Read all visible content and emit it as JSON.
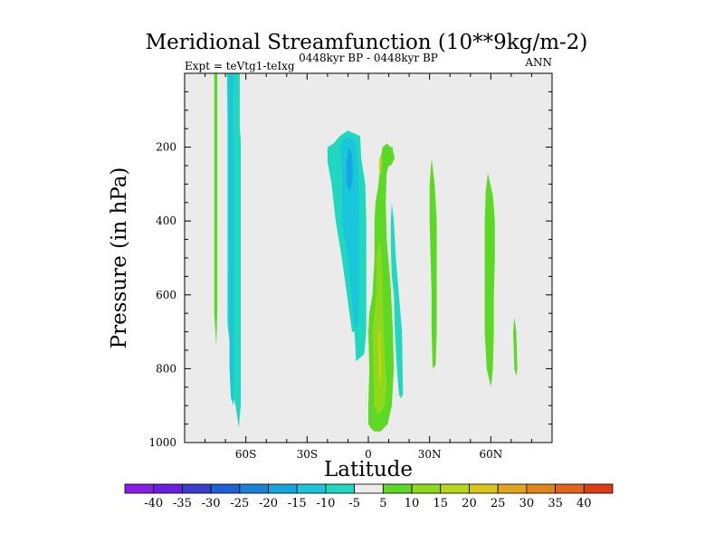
{
  "chart_data": {
    "type": "heatmap",
    "title": "Meridional Streamfunction (10**9kg/m-2)",
    "subtitle_left": "Expt = teVtg1-teIxg",
    "subtitle_center": "0448kyr BP - 0448kyr BP",
    "subtitle_right": "ANN",
    "xlabel": "Latitude",
    "ylabel": "Pressure (in hPa)",
    "xlim": [
      -90,
      90
    ],
    "ylim": [
      1000,
      0
    ],
    "x_ticks": [
      {
        "value": -60,
        "label": "60S"
      },
      {
        "value": -30,
        "label": "30S"
      },
      {
        "value": 0,
        "label": "0"
      },
      {
        "value": 30,
        "label": "30N"
      },
      {
        "value": 60,
        "label": "60N"
      }
    ],
    "y_ticks": [
      {
        "value": 200,
        "label": "200"
      },
      {
        "value": 400,
        "label": "400"
      },
      {
        "value": 600,
        "label": "600"
      },
      {
        "value": 800,
        "label": "800"
      },
      {
        "value": 1000,
        "label": "1000"
      }
    ],
    "colorbar": {
      "labels": [
        "-40",
        "-35",
        "-30",
        "-25",
        "-20",
        "-15",
        "-10",
        "-5",
        "5",
        "10",
        "15",
        "20",
        "25",
        "30",
        "35",
        "40"
      ],
      "colors": [
        "#8a1ee8",
        "#6a1ee0",
        "#3c3ccf",
        "#1f5fd8",
        "#1a82d8",
        "#15a6df",
        "#19c6dc",
        "#20d8c0",
        "#ebebeb",
        "#5cd825",
        "#8ed81e",
        "#b8d61a",
        "#d8c71a",
        "#e0a71a",
        "#e2861a",
        "#e2641a",
        "#e03c14"
      ]
    },
    "contours": [
      {
        "level": 5,
        "color": "#5cd825",
        "points": [
          [
            -75.5,
            0
          ],
          [
            -74,
            0
          ],
          [
            -74,
            650
          ],
          [
            -74.5,
            740
          ],
          [
            -75.5,
            650
          ]
        ]
      },
      {
        "level": -5,
        "color": "#20d8c0",
        "points": [
          [
            -69.3,
            0
          ],
          [
            -63,
            0
          ],
          [
            -63,
            150
          ],
          [
            -62.5,
            180
          ],
          [
            -62.5,
            900
          ],
          [
            -63.5,
            960
          ],
          [
            -65,
            900
          ],
          [
            -66,
            880
          ],
          [
            -66.5,
            800
          ],
          [
            -69,
            680
          ],
          [
            -69,
            130
          ]
        ]
      },
      {
        "level": -10,
        "color": "#19c6dc",
        "points": [
          [
            -68.5,
            0
          ],
          [
            -66,
            0
          ],
          [
            -66.5,
            150
          ],
          [
            -66,
            220
          ],
          [
            -66,
            900
          ],
          [
            -67.3,
            880
          ],
          [
            -68,
            800
          ],
          [
            -68,
            680
          ],
          [
            -68.3,
            130
          ]
        ]
      },
      {
        "level": -5,
        "color": "#20d8c0",
        "points": [
          [
            -20,
            200
          ],
          [
            -17,
            190
          ],
          [
            -14,
            170
          ],
          [
            -10,
            155
          ],
          [
            -4,
            170
          ],
          [
            -3.5,
            230
          ],
          [
            -1.5,
            300
          ],
          [
            -1,
            400
          ],
          [
            -1,
            500
          ],
          [
            -1,
            600
          ],
          [
            -1,
            700
          ],
          [
            -2,
            760
          ],
          [
            -4,
            770
          ],
          [
            -6,
            780
          ],
          [
            -6.8,
            700
          ],
          [
            -8,
            700
          ],
          [
            -13,
            500
          ],
          [
            -16,
            400
          ],
          [
            -18,
            300
          ],
          [
            -20,
            240
          ]
        ]
      },
      {
        "level": -10,
        "color": "#19c6dc",
        "points": [
          [
            -14,
            200
          ],
          [
            -12,
            180
          ],
          [
            -9,
            170
          ],
          [
            -6,
            190
          ],
          [
            -5,
            260
          ],
          [
            -4.5,
            400
          ],
          [
            -4.5,
            600
          ],
          [
            -5,
            680
          ],
          [
            -6.8,
            690
          ],
          [
            -10,
            500
          ],
          [
            -13,
            400
          ],
          [
            -13,
            250
          ]
        ]
      },
      {
        "level": -15,
        "color": "#15a6df",
        "points": [
          [
            -11,
            250
          ],
          [
            -9.5,
            200
          ],
          [
            -8,
            220
          ],
          [
            -7.5,
            280
          ],
          [
            -9,
            320
          ],
          [
            -10.5,
            300
          ]
        ]
      },
      {
        "level": 5,
        "color": "#5cd825",
        "points": [
          [
            0.5,
            650
          ],
          [
            2,
            600
          ],
          [
            3,
            500
          ],
          [
            3,
            400
          ],
          [
            3.5,
            350
          ],
          [
            5,
            300
          ],
          [
            6,
            230
          ],
          [
            7,
            200
          ],
          [
            9,
            190
          ],
          [
            11,
            200
          ],
          [
            12,
            200
          ],
          [
            12,
            210
          ],
          [
            13,
            230
          ],
          [
            11,
            250
          ],
          [
            10,
            250
          ],
          [
            9,
            270
          ],
          [
            8.5,
            350
          ],
          [
            9,
            450
          ],
          [
            11,
            580
          ],
          [
            12,
            700
          ],
          [
            12.5,
            800
          ],
          [
            11.5,
            900
          ],
          [
            9.5,
            950
          ],
          [
            6,
            970
          ],
          [
            3,
            970
          ],
          [
            1,
            960
          ],
          [
            0,
            950
          ],
          [
            0,
            900
          ],
          [
            0.5,
            800
          ],
          [
            0,
            700
          ]
        ]
      },
      {
        "level": 10,
        "color": "#8ed81e",
        "points": [
          [
            2,
            700
          ],
          [
            3,
            650
          ],
          [
            4,
            600
          ],
          [
            4,
            500
          ],
          [
            5.5,
            450
          ],
          [
            6.5,
            500
          ],
          [
            7,
            600
          ],
          [
            8,
            750
          ],
          [
            9,
            850
          ],
          [
            8,
            900
          ],
          [
            6,
            920
          ],
          [
            4,
            920
          ],
          [
            3,
            900
          ],
          [
            2.5,
            800
          ]
        ]
      },
      {
        "level": 15,
        "color": "#b8d61a",
        "points": [
          [
            5.5,
            230
          ],
          [
            6.5,
            220
          ],
          [
            6.7,
            250
          ],
          [
            6,
            280
          ],
          [
            5.2,
            260
          ]
        ]
      },
      {
        "level": 15,
        "color": "#b8d61a",
        "points": [
          [
            4.5,
            700
          ],
          [
            6,
            700
          ],
          [
            6.5,
            800
          ],
          [
            6,
            850
          ],
          [
            5,
            820
          ]
        ]
      },
      {
        "level": -5,
        "color": "#20d8c0",
        "points": [
          [
            11.5,
            350
          ],
          [
            12.5,
            400
          ],
          [
            13.5,
            500
          ],
          [
            16.5,
            700
          ],
          [
            17,
            870
          ],
          [
            16,
            880
          ],
          [
            15,
            870
          ],
          [
            14,
            800
          ],
          [
            13,
            700
          ],
          [
            12.5,
            600
          ],
          [
            11.5,
            550
          ],
          [
            11,
            470
          ],
          [
            11,
            400
          ]
        ]
      },
      {
        "level": 5,
        "color": "#5cd825",
        "points": [
          [
            31,
            230
          ],
          [
            32.5,
            300
          ],
          [
            33.5,
            400
          ],
          [
            33.5,
            500
          ],
          [
            33.5,
            600
          ],
          [
            33.5,
            700
          ],
          [
            33,
            790
          ],
          [
            31.5,
            800
          ],
          [
            31,
            700
          ],
          [
            31,
            600
          ],
          [
            30.5,
            500
          ],
          [
            30,
            400
          ],
          [
            30,
            300
          ]
        ]
      },
      {
        "level": 5,
        "color": "#5cd825",
        "points": [
          [
            58.5,
            270
          ],
          [
            61,
            330
          ],
          [
            62,
            400
          ],
          [
            62,
            500
          ],
          [
            61.5,
            600
          ],
          [
            61.5,
            700
          ],
          [
            61,
            800
          ],
          [
            60.5,
            830
          ],
          [
            60,
            850
          ],
          [
            58,
            800
          ],
          [
            57,
            700
          ],
          [
            57,
            600
          ],
          [
            57,
            500
          ],
          [
            57,
            400
          ],
          [
            57.5,
            320
          ]
        ]
      },
      {
        "level": 5,
        "color": "#5cd825",
        "points": [
          [
            71.5,
            660
          ],
          [
            72.5,
            700
          ],
          [
            73,
            800
          ],
          [
            72.5,
            820
          ],
          [
            71.5,
            800
          ],
          [
            71,
            700
          ]
        ]
      }
    ]
  }
}
